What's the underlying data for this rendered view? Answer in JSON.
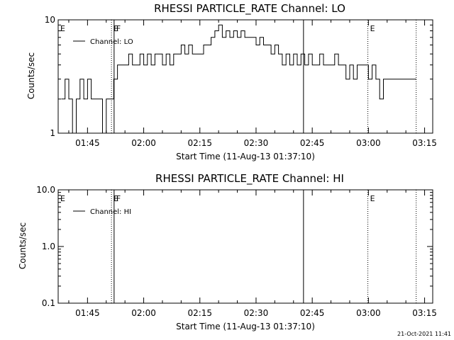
{
  "chart_data": [
    {
      "type": "line",
      "title": "RHESSI PARTICLE_RATE Channel: LO",
      "xlabel": "Start Time (11-Aug-13 01:37:10)",
      "ylabel": "Counts/sec",
      "y_scale": "log",
      "ylim": [
        1,
        10
      ],
      "y_ticks": [
        {
          "v": 1,
          "label": "1"
        },
        {
          "v": 10,
          "label": "10"
        }
      ],
      "xlim": [
        "01:37:10",
        "03:17:10"
      ],
      "x_ticks": [
        "01:45",
        "02:00",
        "02:15",
        "02:30",
        "02:45",
        "03:00",
        "03:15"
      ],
      "legend": {
        "position": "top-left",
        "entries": [
          "Channel: LO"
        ]
      },
      "markers": [
        {
          "t": "01:51:24",
          "label": "E",
          "style": "dotted"
        },
        {
          "t": "01:52:06",
          "label": "F",
          "style": "solid"
        },
        {
          "t": "02:42:40",
          "label": "",
          "style": "solid"
        },
        {
          "t": "02:59:51",
          "label": "E",
          "style": "dotted"
        },
        {
          "t": "03:12:45",
          "label": "",
          "style": "dotted"
        },
        {
          "t": "01:37:10",
          "label": "E",
          "style": "none"
        }
      ],
      "series": [
        {
          "x": [
            "01:38",
            "01:39",
            "01:40",
            "01:41",
            "01:42",
            "01:43",
            "01:44",
            "01:45",
            "01:46",
            "01:47",
            "01:48",
            "01:49",
            "01:50",
            "01:51",
            "01:52",
            "01:53",
            "01:54",
            "01:55",
            "01:56",
            "01:57",
            "01:58",
            "01:59",
            "02:00",
            "02:01",
            "02:02",
            "02:03",
            "02:04",
            "02:05",
            "02:06",
            "02:07",
            "02:08",
            "02:09",
            "02:10",
            "02:11",
            "02:12",
            "02:13",
            "02:14",
            "02:15",
            "02:16",
            "02:17",
            "02:18",
            "02:19",
            "02:20",
            "02:21",
            "02:22",
            "02:23",
            "02:24",
            "02:25",
            "02:26",
            "02:27",
            "02:28",
            "02:29",
            "02:30",
            "02:31",
            "02:32",
            "02:33",
            "02:34",
            "02:35",
            "02:36",
            "02:37",
            "02:38",
            "02:39",
            "02:40",
            "02:41",
            "02:42",
            "02:43",
            "02:44",
            "02:45",
            "02:46",
            "02:47",
            "02:48",
            "02:49",
            "02:50",
            "02:51",
            "02:52",
            "02:53",
            "02:54",
            "02:55",
            "02:56",
            "02:57",
            "02:58",
            "02:59",
            "03:00",
            "03:01",
            "03:02",
            "03:03",
            "03:04",
            "03:05",
            "03:06",
            "03:07",
            "03:08",
            "03:09",
            "03:10",
            "03:11",
            "03:12"
          ],
          "values": [
            2,
            3,
            2,
            1,
            2,
            3,
            2,
            3,
            2,
            2,
            2,
            1,
            2,
            2,
            3,
            4,
            4,
            4,
            5,
            4,
            4,
            5,
            4,
            5,
            4,
            5,
            5,
            4,
            5,
            4,
            5,
            5,
            6,
            5,
            6,
            5,
            5,
            5,
            6,
            6,
            7,
            8,
            9,
            7,
            8,
            7,
            8,
            7,
            8,
            7,
            7,
            7,
            6,
            7,
            6,
            6,
            5,
            6,
            5,
            4,
            5,
            4,
            5,
            4,
            5,
            4,
            5,
            4,
            4,
            5,
            4,
            4,
            4,
            5,
            4,
            4,
            3,
            4,
            3,
            4,
            4,
            4,
            3,
            4,
            3,
            2,
            3,
            3,
            3,
            3,
            3,
            3,
            3,
            3,
            3
          ]
        }
      ]
    },
    {
      "type": "line",
      "title": "RHESSI PARTICLE_RATE Channel: HI",
      "xlabel": "Start Time (11-Aug-13 01:37:10)",
      "ylabel": "Counts/sec",
      "y_scale": "log",
      "ylim": [
        0.1,
        10
      ],
      "y_ticks": [
        {
          "v": 0.1,
          "label": "0.1"
        },
        {
          "v": 1,
          "label": "1.0"
        },
        {
          "v": 10,
          "label": "10.0"
        }
      ],
      "xlim": [
        "01:37:10",
        "03:17:10"
      ],
      "x_ticks": [
        "01:45",
        "02:00",
        "02:15",
        "02:30",
        "02:45",
        "03:00",
        "03:15"
      ],
      "legend": {
        "position": "top-left",
        "entries": [
          "Channel: HI"
        ]
      },
      "markers": [
        {
          "t": "01:51:24",
          "label": "E",
          "style": "dotted"
        },
        {
          "t": "01:52:06",
          "label": "F",
          "style": "solid"
        },
        {
          "t": "02:42:40",
          "label": "",
          "style": "solid"
        },
        {
          "t": "02:59:51",
          "label": "E",
          "style": "dotted"
        },
        {
          "t": "03:12:45",
          "label": "",
          "style": "dotted"
        },
        {
          "t": "01:37:10",
          "label": "E",
          "style": "none"
        }
      ],
      "series": [
        {
          "x": [],
          "values": []
        }
      ]
    }
  ],
  "footer": {
    "timestamp": "21-Oct-2021 11:41"
  }
}
